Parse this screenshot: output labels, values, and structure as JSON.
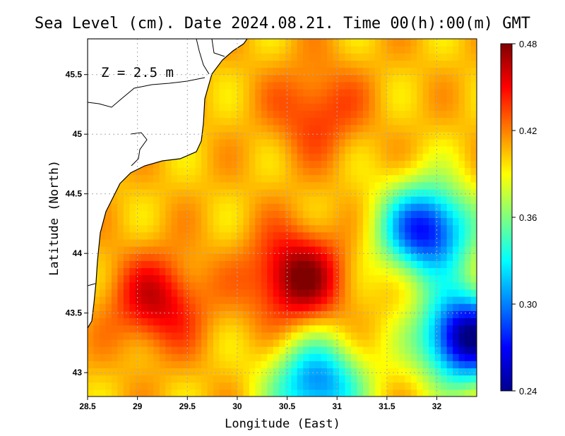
{
  "chart_data": {
    "type": "heatmap",
    "title": "Sea Level (cm). Date 2024.08.21. Time 00(h):00(m) GMT",
    "xlabel": "Longitude (East)",
    "ylabel": "Latitude (North)",
    "xlim": [
      28.5,
      32.4
    ],
    "ylim": [
      42.8,
      45.8
    ],
    "x_ticks": [
      "28.5",
      "29",
      "29.5",
      "30",
      "30.5",
      "31",
      "31.5",
      "32"
    ],
    "y_ticks": [
      "43",
      "43.5",
      "44",
      "44.5",
      "45",
      "45.5"
    ],
    "annotation": "Z = 2.5 m",
    "grid": true,
    "colorbar": {
      "range": [
        0.24,
        0.48
      ],
      "ticks": [
        "0.24",
        "0.30",
        "0.36",
        "0.42",
        "0.48"
      ],
      "colormap": "jet"
    },
    "features": [
      {
        "lon": 30.6,
        "lat": 43.8,
        "value": 0.48,
        "type": "maximum"
      },
      {
        "lon": 29.2,
        "lat": 43.6,
        "value": 0.46,
        "type": "maximum"
      },
      {
        "lon": 30.8,
        "lat": 45.2,
        "value": 0.44,
        "type": "maximum"
      },
      {
        "lon": 32.3,
        "lat": 43.3,
        "value": 0.24,
        "type": "minimum"
      },
      {
        "lon": 31.9,
        "lat": 44.2,
        "value": 0.27,
        "type": "minimum"
      },
      {
        "lon": 30.8,
        "lat": 42.9,
        "value": 0.3,
        "type": "minimum"
      }
    ]
  }
}
